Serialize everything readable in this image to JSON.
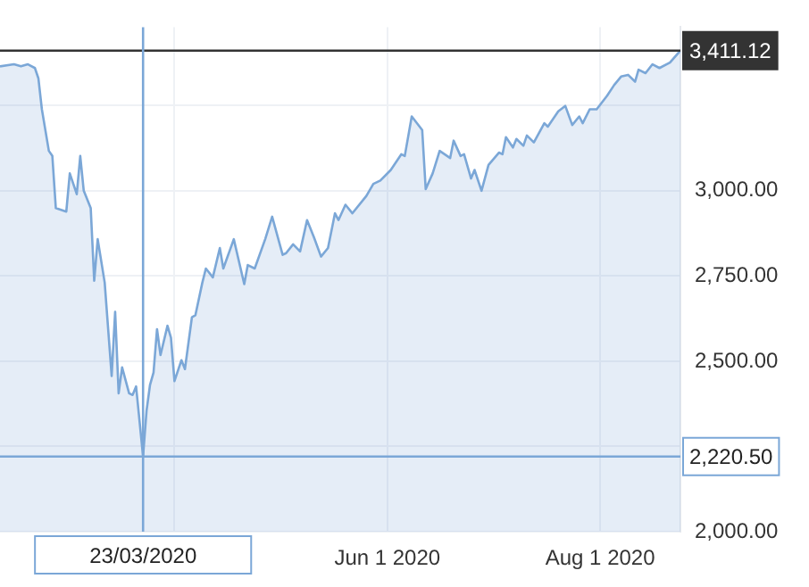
{
  "chart_data": {
    "type": "area",
    "color": "#7ba7d7",
    "x": [
      "2020-02-11",
      "2020-02-15",
      "2020-02-17",
      "2020-02-19",
      "2020-02-21",
      "2020-02-22",
      "2020-02-23",
      "2020-02-25",
      "2020-02-26",
      "2020-02-27",
      "2020-03-01",
      "2020-03-02",
      "2020-03-04",
      "2020-03-05",
      "2020-03-06",
      "2020-03-08",
      "2020-03-09",
      "2020-03-10",
      "2020-03-12",
      "2020-03-14",
      "2020-03-15",
      "2020-03-16",
      "2020-03-17",
      "2020-03-19",
      "2020-03-20",
      "2020-03-21",
      "2020-03-23",
      "2020-03-24",
      "2020-03-25",
      "2020-03-26",
      "2020-03-27",
      "2020-03-28",
      "2020-03-30",
      "2020-03-31",
      "2020-04-01",
      "2020-04-03",
      "2020-04-04",
      "2020-04-06",
      "2020-04-07",
      "2020-04-09",
      "2020-04-10",
      "2020-04-12",
      "2020-04-14",
      "2020-04-15",
      "2020-04-18",
      "2020-04-21",
      "2020-04-22",
      "2020-04-24",
      "2020-04-27",
      "2020-04-29",
      "2020-05-02",
      "2020-05-03",
      "2020-05-05",
      "2020-05-07",
      "2020-05-09",
      "2020-05-11",
      "2020-05-13",
      "2020-05-15",
      "2020-05-17",
      "2020-05-18",
      "2020-05-20",
      "2020-05-22",
      "2020-05-26",
      "2020-05-28",
      "2020-05-30",
      "2020-06-02",
      "2020-06-05",
      "2020-06-06",
      "2020-06-08",
      "2020-06-11",
      "2020-06-12",
      "2020-06-14",
      "2020-06-16",
      "2020-06-19",
      "2020-06-20",
      "2020-06-22",
      "2020-06-23",
      "2020-06-25",
      "2020-06-26",
      "2020-06-28",
      "2020-06-30",
      "2020-07-03",
      "2020-07-04",
      "2020-07-05",
      "2020-07-07",
      "2020-07-08",
      "2020-07-10",
      "2020-07-11",
      "2020-07-13",
      "2020-07-16",
      "2020-07-17",
      "2020-07-20",
      "2020-07-22",
      "2020-07-24",
      "2020-07-26",
      "2020-07-27",
      "2020-07-29",
      "2020-07-31",
      "2020-08-03",
      "2020-08-05",
      "2020-08-07",
      "2020-08-09",
      "2020-08-11",
      "2020-08-12",
      "2020-08-14",
      "2020-08-16",
      "2020-08-18",
      "2020-08-21",
      "2020-08-24"
    ],
    "values": [
      3365,
      3371,
      3365,
      3371,
      3360,
      3330,
      3239,
      3117,
      3102,
      2949,
      2939,
      3051,
      2990,
      3102,
      3000,
      2949,
      2736,
      2858,
      2731,
      2457,
      2645,
      2406,
      2482,
      2406,
      2401,
      2426,
      2220.5,
      2355,
      2431,
      2467,
      2594,
      2518,
      2604,
      2569,
      2442,
      2503,
      2477,
      2629,
      2635,
      2731,
      2772,
      2746,
      2832,
      2772,
      2858,
      2726,
      2782,
      2772,
      2858,
      2924,
      2812,
      2817,
      2843,
      2822,
      2914,
      2863,
      2807,
      2832,
      2934,
      2914,
      2959,
      2934,
      2985,
      3020,
      3030,
      3061,
      3107,
      3102,
      3218,
      3178,
      3005,
      3051,
      3117,
      3096,
      3147,
      3102,
      3107,
      3036,
      3061,
      3000,
      3076,
      3112,
      3107,
      3157,
      3127,
      3152,
      3132,
      3162,
      3142,
      3198,
      3188,
      3233,
      3249,
      3193,
      3218,
      3198,
      3239,
      3239,
      3279,
      3310,
      3335,
      3340,
      3320,
      3355,
      3345,
      3371,
      3360,
      3376,
      3411.12
    ],
    "xlim": [
      "2020-02-11",
      "2020-08-24"
    ],
    "xticks": [
      {
        "value": "2020-04-01",
        "label": null
      },
      {
        "value": "2020-06-01",
        "label": "Jun 1 2020"
      },
      {
        "value": "2020-08-01",
        "label": "Aug 1 2020"
      }
    ],
    "ylim": [
      2000,
      3480
    ],
    "yticks": [
      {
        "value": 2000,
        "label": "2,000.00"
      },
      {
        "value": 2250,
        "label": null
      },
      {
        "value": 2500,
        "label": "2,500.00"
      },
      {
        "value": 2750,
        "label": "2,750.00"
      },
      {
        "value": 3000,
        "label": "3,000.00"
      },
      {
        "value": 3250,
        "label": null
      }
    ],
    "grid": true,
    "legend": false,
    "marker": "none",
    "ref_lines": [
      {
        "axis": "y",
        "value": 3411.12,
        "label": "3,411.12",
        "color": "#333333"
      },
      {
        "axis": "y",
        "value": 2220.5,
        "label": "2,220.50",
        "color": "#7ba7d7"
      },
      {
        "axis": "x",
        "value": "2020-03-23",
        "label": "23/03/2020",
        "color": "#7ba7d7"
      }
    ]
  }
}
